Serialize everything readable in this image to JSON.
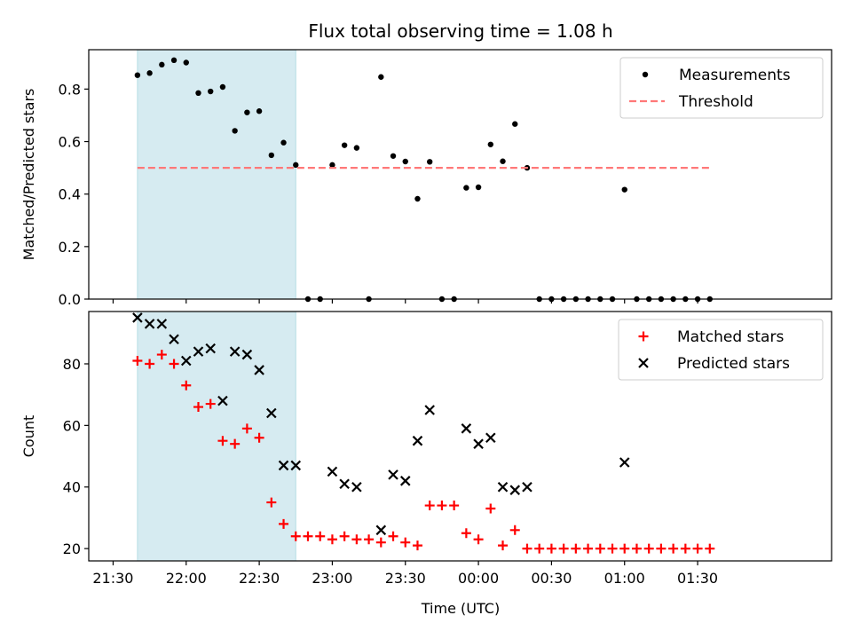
{
  "chart_data": {
    "title": "Flux total observing time = 1.08 h",
    "xlabel": "Time (UTC)",
    "x_ticks": [
      "21:30",
      "22:00",
      "22:30",
      "23:00",
      "23:30",
      "00:00",
      "00:30",
      "01:00",
      "01:30"
    ],
    "shaded_span": {
      "start": "21:40",
      "end": "22:45",
      "color": "#d4eaf0"
    },
    "panels": [
      {
        "type": "scatter",
        "ylabel": "Matched/Predicted stars",
        "ylim": [
          0,
          0.95
        ],
        "y_ticks": [
          "0.0",
          "0.2",
          "0.4",
          "0.6",
          "0.8"
        ],
        "series": [
          {
            "name": "Measurements",
            "marker": "dot",
            "color": "#000000",
            "x": [
              "21:40",
              "21:45",
              "21:50",
              "21:55",
              "22:00",
              "22:05",
              "22:10",
              "22:15",
              "22:20",
              "22:25",
              "22:30",
              "22:35",
              "22:40",
              "22:45",
              "22:50",
              "22:55",
              "23:00",
              "23:05",
              "23:10",
              "23:15",
              "23:20",
              "23:25",
              "23:30",
              "23:35",
              "23:40",
              "23:45",
              "23:50",
              "23:55",
              "00:00",
              "00:05",
              "00:10",
              "00:15",
              "00:20",
              "00:25",
              "00:30",
              "00:35",
              "00:40",
              "00:45",
              "00:50",
              "00:55",
              "01:00",
              "01:05",
              "01:10",
              "01:15",
              "01:20",
              "01:25",
              "01:30",
              "01:35"
            ],
            "y": [
              0.853,
              0.861,
              0.893,
              0.91,
              0.901,
              0.785,
              0.791,
              0.808,
              0.641,
              0.711,
              0.716,
              0.548,
              0.596,
              0.511,
              0,
              0,
              0.511,
              0.586,
              0.576,
              0,
              0.846,
              0.545,
              0.524,
              0.382,
              0.523,
              0,
              0,
              0.424,
              0.426,
              0.589,
              0.525,
              0.667,
              0.5,
              0,
              0,
              0,
              0,
              0,
              0,
              0,
              0.417,
              0,
              0,
              0,
              0,
              0,
              0,
              0
            ]
          },
          {
            "name": "Threshold",
            "type": "line",
            "style": "dashed",
            "color": "#ff7878",
            "x": [
              "21:40",
              "01:35"
            ],
            "y": [
              0.5,
              0.5
            ]
          }
        ],
        "legend": "top-right"
      },
      {
        "type": "scatter",
        "ylabel": "Count",
        "ylim": [
          16,
          97
        ],
        "y_ticks": [
          "20",
          "40",
          "60",
          "80"
        ],
        "series": [
          {
            "name": "Matched stars",
            "marker": "plus",
            "color": "#ff0000",
            "x": [
              "21:40",
              "21:45",
              "21:50",
              "21:55",
              "22:00",
              "22:05",
              "22:10",
              "22:15",
              "22:20",
              "22:25",
              "22:30",
              "22:35",
              "22:40",
              "22:45",
              "22:50",
              "22:55",
              "23:00",
              "23:05",
              "23:10",
              "23:15",
              "23:20",
              "23:25",
              "23:30",
              "23:35",
              "23:40",
              "23:45",
              "23:50",
              "23:55",
              "00:00",
              "00:05",
              "00:10",
              "00:15",
              "00:20",
              "00:25",
              "00:30",
              "00:35",
              "00:40",
              "00:45",
              "00:50",
              "00:55",
              "01:00",
              "01:05",
              "01:10",
              "01:15",
              "01:20",
              "01:25",
              "01:30",
              "01:35"
            ],
            "y": [
              81,
              80,
              83,
              80,
              73,
              66,
              67,
              55,
              54,
              59,
              56,
              35,
              28,
              24,
              24,
              24,
              23,
              24,
              23,
              23,
              22,
              24,
              22,
              21,
              34,
              34,
              34,
              25,
              23,
              33,
              21,
              26,
              20,
              20,
              20,
              20,
              20,
              20,
              20,
              20,
              20,
              20,
              20,
              20,
              20,
              20,
              20,
              20
            ]
          },
          {
            "name": "Predicted stars",
            "marker": "x",
            "color": "#000000",
            "x": [
              "21:40",
              "21:45",
              "21:50",
              "21:55",
              "22:00",
              "22:05",
              "22:10",
              "22:15",
              "22:20",
              "22:25",
              "22:30",
              "22:35",
              "22:40",
              "22:45",
              "23:00",
              "23:05",
              "23:10",
              "23:20",
              "23:25",
              "23:30",
              "23:35",
              "23:40",
              "23:55",
              "00:00",
              "00:05",
              "00:10",
              "00:15",
              "00:20",
              "01:00"
            ],
            "y": [
              95,
              93,
              93,
              88,
              81,
              84,
              85,
              68,
              84,
              83,
              78,
              64,
              47,
              47,
              45,
              41,
              40,
              26,
              44,
              42,
              55,
              65,
              59,
              54,
              56,
              40,
              39,
              40,
              48
            ]
          }
        ],
        "legend": "top-right"
      }
    ]
  }
}
